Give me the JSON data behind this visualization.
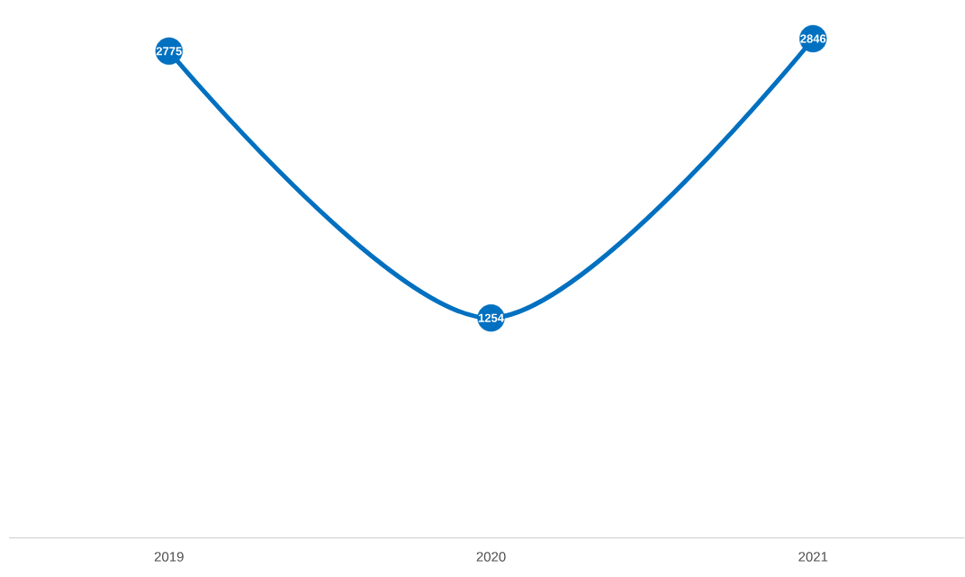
{
  "chart_data": {
    "type": "line",
    "categories": [
      "2019",
      "2020",
      "2021"
    ],
    "values": [
      2775,
      1254,
      2846
    ],
    "color": "#0070c0",
    "marker": "circle",
    "data_labels": true,
    "tick_labels": "x",
    "line_style": "solid"
  }
}
